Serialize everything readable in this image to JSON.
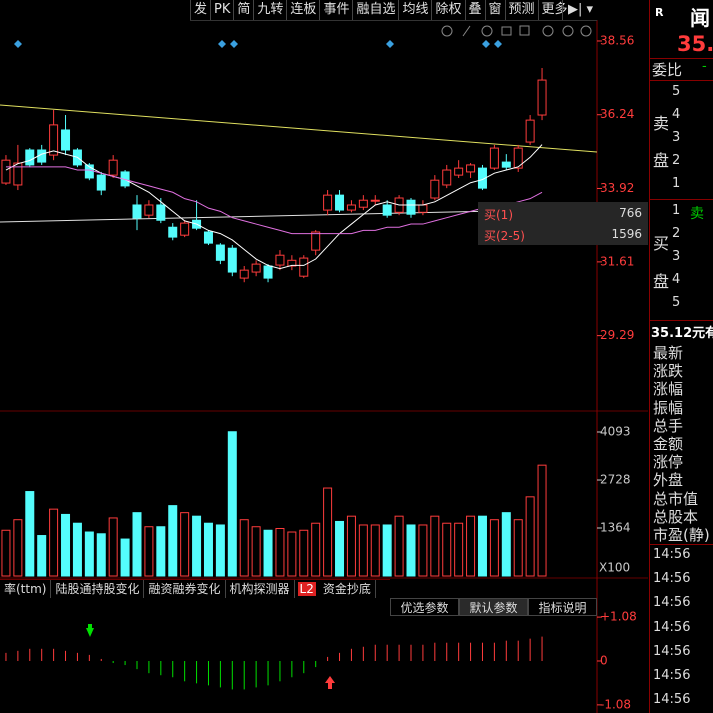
{
  "toolbar": [
    "发",
    "PK",
    "简",
    "九转",
    "连板",
    "事件",
    "融自选",
    "均线",
    "除权",
    "叠",
    "窗",
    "预测",
    "更多"
  ],
  "chart_data": [
    {
      "type": "candlestick",
      "open": [
        34.09,
        34.03,
        35.13,
        35.13,
        34.97,
        35.76,
        35.13,
        34.66,
        34.34,
        34.34,
        34.44,
        33.4,
        33.08,
        33.4,
        32.7,
        32.45,
        32.92,
        32.55,
        32.14,
        32.04,
        31.1,
        31.29,
        31.48,
        31.51,
        31.48,
        31.16,
        31.98,
        33.24,
        33.71,
        33.24,
        33.33,
        33.55,
        33.4,
        33.17,
        33.55,
        33.17,
        33.62,
        34.03,
        34.34,
        34.44,
        34.56,
        34.56,
        34.75,
        34.56,
        35.38,
        36.23
      ],
      "high": [
        34.97,
        35.29,
        35.19,
        35.29,
        36.39,
        36.23,
        35.19,
        34.72,
        34.44,
        34.97,
        34.5,
        33.71,
        33.55,
        33.62,
        32.83,
        32.92,
        33.55,
        32.61,
        32.2,
        32.14,
        31.48,
        31.66,
        31.54,
        31.98,
        31.82,
        31.82,
        32.61,
        33.87,
        33.87,
        33.55,
        33.71,
        33.71,
        33.55,
        33.71,
        33.62,
        33.55,
        34.34,
        34.66,
        34.81,
        34.72,
        34.66,
        35.29,
        35.0,
        35.29,
        36.23,
        37.71
      ],
      "low": [
        34.03,
        33.87,
        34.59,
        34.66,
        34.81,
        34.97,
        34.59,
        34.18,
        33.71,
        34.25,
        33.93,
        32.61,
        32.99,
        32.83,
        32.29,
        32.39,
        32.61,
        32.14,
        31.54,
        31.16,
        30.97,
        31.16,
        30.97,
        31.35,
        31.35,
        31.1,
        31.82,
        33.08,
        33.17,
        33.17,
        33.24,
        33.4,
        33.0,
        33.08,
        33.0,
        33.08,
        33.55,
        33.93,
        34.25,
        34.25,
        33.87,
        34.5,
        34.5,
        34.44,
        35.29,
        36.07
      ],
      "close": [
        34.81,
        34.72,
        34.66,
        34.75,
        35.92,
        35.13,
        34.66,
        34.25,
        33.87,
        34.81,
        34.0,
        32.99,
        33.4,
        32.92,
        32.39,
        32.83,
        32.67,
        32.2,
        31.66,
        31.29,
        31.35,
        31.54,
        31.1,
        31.82,
        31.66,
        31.73,
        32.55,
        33.71,
        33.24,
        33.4,
        33.55,
        33.55,
        33.08,
        33.62,
        33.11,
        33.4,
        34.18,
        34.5,
        34.56,
        34.66,
        33.93,
        35.19,
        34.59,
        35.19,
        36.07,
        37.33
      ],
      "up_color": "#ff3c3c",
      "down_color": "#54fcfc",
      "lines": [
        {
          "color": "#ffffff",
          "values": [
            34.5,
            34.7,
            34.8,
            35.0,
            35.1,
            35.0,
            34.9,
            34.6,
            34.4,
            34.3,
            34.2,
            34.0,
            33.8,
            33.5,
            33.2,
            32.9,
            32.8,
            32.6,
            32.5,
            32.3,
            32.0,
            31.7,
            31.5,
            31.4,
            31.5,
            31.5,
            31.7,
            32.1,
            32.5,
            32.8,
            33.1,
            33.4,
            33.5,
            33.4,
            33.4,
            33.4,
            33.5,
            33.7,
            33.9,
            34.1,
            34.2,
            34.4,
            34.5,
            34.6,
            34.9,
            35.3
          ]
        },
        {
          "color": "#e070e0",
          "values": [
            34.6,
            34.6,
            34.6,
            34.6,
            34.6,
            34.6,
            34.5,
            34.5,
            34.4,
            34.3,
            34.2,
            34.1,
            34.0,
            33.9,
            33.8,
            33.6,
            33.5,
            33.3,
            33.2,
            33.0,
            32.9,
            32.8,
            32.7,
            32.6,
            32.5,
            32.5,
            32.5,
            32.5,
            32.5,
            32.5,
            32.6,
            32.6,
            32.7,
            32.7,
            32.8,
            32.8,
            32.9,
            33.0,
            33.1,
            33.2,
            33.3,
            33.3,
            33.4,
            33.5,
            33.6,
            33.8
          ]
        }
      ],
      "ylim": [
        26.95,
        39.22
      ],
      "yticks": [
        38.56,
        36.24,
        33.92,
        31.61,
        29.29
      ],
      "tick_color": "#ff3c3c"
    },
    {
      "type": "bar",
      "values": [
        1300,
        1600,
        2400,
        1150,
        1900,
        1750,
        1500,
        1250,
        1200,
        1650,
        1050,
        1800,
        1400,
        1400,
        2000,
        1800,
        1700,
        1500,
        1450,
        4100,
        1600,
        1400,
        1300,
        1350,
        1250,
        1300,
        1500,
        2500,
        1550,
        1700,
        1450,
        1450,
        1450,
        1700,
        1450,
        1450,
        1700,
        1500,
        1500,
        1700,
        1700,
        1600,
        1800,
        1600,
        2250,
        3150
      ],
      "ylim": [
        0,
        4661
      ],
      "yticks": [
        4093,
        2728,
        1364
      ],
      "unit_label": "X100",
      "tick_color": "#c8c8c8"
    },
    {
      "type": "bar",
      "values": [
        0.2,
        0.25,
        0.3,
        0.3,
        0.3,
        0.25,
        0.2,
        0.15,
        0.05,
        -0.05,
        -0.1,
        -0.2,
        -0.3,
        -0.35,
        -0.4,
        -0.5,
        -0.55,
        -0.6,
        -0.65,
        -0.7,
        -0.7,
        -0.65,
        -0.6,
        -0.5,
        -0.4,
        -0.3,
        -0.15,
        0.1,
        0.2,
        0.3,
        0.35,
        0.4,
        0.4,
        0.4,
        0.4,
        0.4,
        0.45,
        0.45,
        0.45,
        0.45,
        0.45,
        0.45,
        0.5,
        0.5,
        0.55,
        0.6
      ],
      "ylim": [
        -1.28,
        1.55
      ],
      "yticks": [
        {
          "value": 1.08,
          "label": "+1.08"
        },
        0,
        -1.08
      ],
      "pos_color": "#ff3c3c",
      "neg_color": "#00e000",
      "tick_color": "#ff3c3c"
    }
  ],
  "tabs": [
    "率(ttm)",
    "陆股通持股变化",
    "融资融券变化",
    "机构探测器",
    "L2",
    "资金抄底"
  ],
  "buttons": [
    "优选参数",
    "默认参数",
    "指标说明"
  ],
  "popup": [
    {
      "label": "买(1)",
      "value": 766
    },
    {
      "label": "买(2-5)",
      "value": 1596
    }
  ],
  "panel": {
    "code": "R",
    "name": "闻",
    "price": "35.",
    "weibi_label": "委比",
    "weibi": "-",
    "sell_label": [
      "卖",
      "盘"
    ],
    "sell_levels": [
      "5",
      "4",
      "3",
      "2",
      "1"
    ],
    "buy_label": [
      "买",
      "盘"
    ],
    "buy_levels": [
      "1",
      "2",
      "3",
      "4",
      "5"
    ],
    "buy_first_tag": "卖",
    "price_line": "35.12元有",
    "fields": [
      "最新",
      "涨跌",
      "涨幅",
      "振幅",
      "总手",
      "金额",
      "涨停",
      "外盘",
      "总市值",
      "总股本",
      "市盈(静)"
    ],
    "times": [
      "14:56",
      "14:56",
      "14:56",
      "14:56",
      "14:56",
      "14:56",
      "14:56"
    ]
  }
}
